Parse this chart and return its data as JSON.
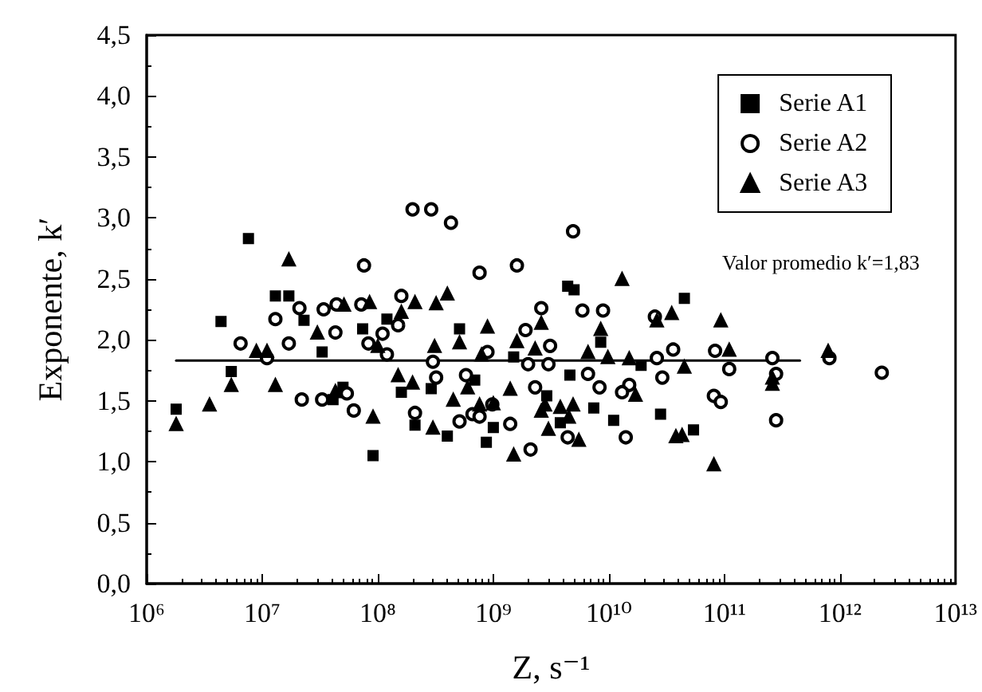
{
  "chart_data": {
    "type": "scatter",
    "xlabel": "Z, s⁻¹",
    "ylabel": "Exponente, k′",
    "log": "x",
    "grid": false,
    "legend": "top right",
    "xlim": [
      1000000.0,
      10000000000000.0
    ],
    "xticks": [
      {
        "value": 1000000.0,
        "label": "10⁶"
      },
      {
        "value": 10000000.0,
        "label": "10⁷"
      },
      {
        "value": 100000000.0,
        "label": "10⁸"
      },
      {
        "value": 1000000000.0,
        "label": "10⁹"
      },
      {
        "value": 10000000000.0,
        "label": "10¹⁰"
      },
      {
        "value": 100000000000.0,
        "label": "10¹¹"
      },
      {
        "value": 1000000000000.0,
        "label": "10¹²"
      },
      {
        "value": 10000000000000.0,
        "label": "10¹³"
      }
    ],
    "ylim": [
      0,
      4.5
    ],
    "yticks": [
      {
        "value": 0,
        "label": "0,0"
      },
      {
        "value": 0.5,
        "label": "0,5"
      },
      {
        "value": 1,
        "label": "1,0"
      },
      {
        "value": 1.5,
        "label": "1,5"
      },
      {
        "value": 2,
        "label": "2,0"
      },
      {
        "value": 2.5,
        "label": "2,5"
      },
      {
        "value": 3,
        "label": "3,0"
      },
      {
        "value": 3.5,
        "label": "3,5"
      },
      {
        "value": 4,
        "label": "4,0"
      },
      {
        "value": 4.5,
        "label": "4,5"
      }
    ],
    "annotations": [
      "Valor promedio k′=1,83"
    ],
    "series": [
      {
        "name": "Serie A1",
        "color": "#000000",
        "marker": "square",
        "x": [
          7600000.0,
          13000000.0,
          17000000.0,
          4400000.0,
          23000000.0,
          74000000.0,
          120000000.0,
          33000000.0,
          5400000.0,
          1800000.0,
          50000000.0,
          41000000.0,
          160000000.0,
          210000000.0,
          91000000.0,
          4400000000.0,
          5000000000.0,
          510000000.0,
          8500000000.0,
          1500000000.0,
          19000000000.0,
          4600000000.0,
          290000000.0,
          690000000.0,
          2900000000.0,
          7400000000.0,
          400000000.0,
          1000000000.0,
          870000000.0,
          3800000000.0,
          11000000000.0,
          28000000000.0,
          45000000000.0,
          54000000000.0
        ],
        "values": [
          2.83,
          2.36,
          2.36,
          2.15,
          2.16,
          2.09,
          2.17,
          1.9,
          1.74,
          1.43,
          1.61,
          1.51,
          1.57,
          1.3,
          1.05,
          2.44,
          2.41,
          2.09,
          1.98,
          1.86,
          1.79,
          1.71,
          1.6,
          1.67,
          1.54,
          1.44,
          1.21,
          1.28,
          1.16,
          1.32,
          1.34,
          1.39,
          2.34,
          1.26
        ]
      },
      {
        "name": "Serie A2",
        "color": "#000000",
        "marker": "circle",
        "x": [
          200000000.0,
          76000000.0,
          160000000.0,
          21000000.0,
          34000000.0,
          44000000.0,
          72000000.0,
          13000000.0,
          43000000.0,
          150000000.0,
          110000000.0,
          6500000.0,
          17000000.0,
          83000000.0,
          11000000.0,
          120000000.0,
          22000000.0,
          33000000.0,
          54000000.0,
          62000000.0,
          210000000.0,
          290000000.0,
          430000000.0,
          4900000000.0,
          760000000.0,
          1600000000.0,
          2600000000.0,
          5900000000.0,
          8900000000.0,
          25000000000.0,
          1900000000.0,
          3100000000.0,
          890000000.0,
          36000000000.0,
          300000000.0,
          2000000000.0,
          3000000000.0,
          26000000000.0,
          320000000.0,
          580000000.0,
          6600000000.0,
          8300000000.0,
          29000000000.0,
          2300000000.0,
          15000000000.0,
          13000000000.0,
          660000000.0,
          760000000.0,
          980000000.0,
          510000000.0,
          1400000000.0,
          4400000000.0,
          2100000000.0,
          14000000000.0,
          83000000000.0,
          110000000000.0,
          81000000000.0,
          93000000000.0,
          260000000000.0,
          280000000000.0,
          280000000000.0,
          810000000000.0,
          2300000000000.0
        ],
        "values": [
          3.07,
          2.61,
          2.36,
          2.26,
          2.25,
          2.29,
          2.29,
          2.17,
          2.06,
          2.12,
          2.05,
          1.97,
          1.97,
          1.97,
          1.85,
          1.88,
          1.51,
          1.51,
          1.56,
          1.42,
          1.4,
          3.07,
          2.96,
          2.89,
          2.55,
          2.61,
          2.26,
          2.24,
          2.24,
          2.19,
          2.08,
          1.95,
          1.9,
          1.92,
          1.82,
          1.8,
          1.8,
          1.85,
          1.69,
          1.71,
          1.72,
          1.61,
          1.69,
          1.61,
          1.63,
          1.57,
          1.39,
          1.37,
          1.47,
          1.33,
          1.31,
          1.2,
          1.1,
          1.2,
          1.91,
          1.76,
          1.54,
          1.49,
          1.85,
          1.72,
          1.34,
          1.85,
          1.73
        ]
      },
      {
        "name": "Serie A3",
        "color": "#000000",
        "marker": "triangle",
        "x": [
          17000000.0,
          51000000.0,
          85000000.0,
          210000000.0,
          160000000.0,
          30000000.0,
          8900000.0,
          11000000.0,
          100000000.0,
          5400000.0,
          13000000.0,
          3500000.0,
          1800000.0,
          150000000.0,
          200000000.0,
          43000000.0,
          91000000.0,
          320000000.0,
          400000000.0,
          13000000000.0,
          890000000.0,
          510000000.0,
          310000000.0,
          1600000000.0,
          2300000000.0,
          2600000000.0,
          8500000000.0,
          26000000000.0,
          35000000000.0,
          790000000.0,
          6600000000.0,
          9800000000.0,
          15000000000.0,
          450000000.0,
          600000000.0,
          1400000000.0,
          17000000000.0,
          760000000.0,
          1000000000.0,
          2800000000.0,
          3800000000.0,
          4900000000.0,
          2600000000.0,
          4500000000.0,
          300000000.0,
          3000000000.0,
          5500000000.0,
          1500000000.0,
          38000000000.0,
          93000000000.0,
          110000000000.0,
          45000000000.0,
          43000000000.0,
          81000000000.0,
          260000000000.0,
          260000000000.0,
          790000000000.0
        ],
        "values": [
          2.66,
          2.29,
          2.31,
          2.31,
          2.23,
          2.06,
          1.91,
          1.91,
          1.95,
          1.63,
          1.63,
          1.47,
          1.31,
          1.71,
          1.65,
          1.58,
          1.37,
          2.3,
          2.38,
          2.5,
          2.11,
          1.98,
          1.95,
          1.99,
          1.93,
          2.14,
          2.09,
          2.16,
          2.22,
          1.88,
          1.9,
          1.86,
          1.85,
          1.51,
          1.61,
          1.6,
          1.55,
          1.47,
          1.48,
          1.47,
          1.45,
          1.47,
          1.42,
          1.37,
          1.28,
          1.27,
          1.18,
          1.06,
          1.21,
          2.16,
          1.92,
          1.78,
          1.22,
          0.98,
          1.69,
          1.64,
          1.91
        ]
      },
      {
        "type": "line",
        "color": "#000000",
        "marker": "none",
        "line_style": "solid",
        "x": [
          1800000.0,
          450000000000.0
        ],
        "values": [
          1.83,
          1.83
        ]
      }
    ]
  }
}
